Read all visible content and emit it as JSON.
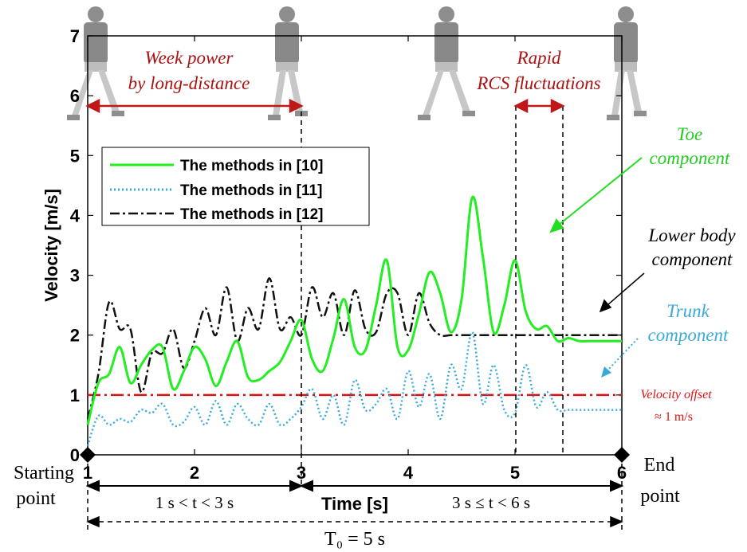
{
  "chart_data": {
    "type": "line",
    "title": "",
    "xlabel": "Time [s]",
    "ylabel": "Velocity [m/s]",
    "xlim": [
      1,
      6
    ],
    "ylim": [
      0,
      7
    ],
    "xticks": [
      1,
      2,
      3,
      4,
      5,
      6
    ],
    "yticks": [
      0,
      1,
      2,
      3,
      4,
      5,
      6,
      7
    ],
    "grid": false,
    "legend_position": "upper-left",
    "series": [
      {
        "name": "The methods in [10]",
        "color": "#22ee22",
        "style": "solid",
        "x": [
          1.0,
          1.1,
          1.2,
          1.3,
          1.4,
          1.5,
          1.6,
          1.7,
          1.8,
          1.9,
          2.0,
          2.1,
          2.2,
          2.3,
          2.4,
          2.5,
          2.6,
          2.7,
          2.8,
          2.9,
          3.0,
          3.1,
          3.2,
          3.3,
          3.4,
          3.5,
          3.6,
          3.7,
          3.8,
          3.9,
          4.0,
          4.1,
          4.2,
          4.3,
          4.4,
          4.5,
          4.6,
          4.7,
          4.8,
          4.9,
          5.0,
          5.1,
          5.2,
          5.3,
          5.4,
          5.5,
          5.6,
          5.7,
          5.8,
          5.9,
          6.0
        ],
        "y": [
          0.5,
          1.2,
          1.35,
          1.8,
          1.2,
          1.5,
          1.75,
          1.8,
          1.1,
          1.4,
          1.8,
          1.6,
          1.15,
          1.55,
          1.9,
          1.3,
          1.25,
          1.4,
          1.55,
          1.9,
          2.25,
          1.6,
          1.4,
          1.95,
          2.6,
          1.8,
          1.75,
          2.5,
          3.25,
          1.8,
          1.75,
          2.35,
          3.05,
          2.7,
          2.05,
          2.6,
          4.3,
          3.3,
          2.05,
          2.5,
          3.25,
          2.4,
          2.1,
          2.15,
          1.9,
          1.95,
          1.9,
          1.9,
          1.9,
          1.9,
          1.9
        ]
      },
      {
        "name": "The methods in [11]",
        "color": "#3aaad8",
        "style": "dotted",
        "x": [
          1.0,
          1.1,
          1.2,
          1.3,
          1.4,
          1.5,
          1.6,
          1.7,
          1.8,
          1.9,
          2.0,
          2.1,
          2.2,
          2.3,
          2.4,
          2.5,
          2.6,
          2.7,
          2.8,
          2.9,
          3.0,
          3.1,
          3.2,
          3.3,
          3.4,
          3.5,
          3.6,
          3.7,
          3.8,
          3.9,
          4.0,
          4.1,
          4.2,
          4.3,
          4.4,
          4.5,
          4.6,
          4.7,
          4.8,
          4.9,
          5.0,
          5.1,
          5.2,
          5.3,
          5.4,
          5.5,
          5.6,
          5.7,
          5.8,
          5.9,
          6.0
        ],
        "y": [
          0.15,
          0.65,
          0.5,
          0.6,
          0.55,
          0.75,
          0.7,
          0.85,
          0.5,
          0.55,
          0.8,
          0.5,
          0.9,
          0.5,
          0.85,
          0.6,
          0.5,
          0.85,
          0.5,
          0.6,
          0.8,
          1.1,
          0.6,
          1.0,
          0.5,
          1.25,
          0.75,
          0.85,
          1.1,
          0.6,
          1.4,
          0.8,
          1.35,
          0.6,
          1.5,
          1.1,
          2.05,
          0.85,
          1.5,
          0.75,
          0.7,
          1.5,
          0.8,
          1.05,
          0.75,
          0.75,
          0.75,
          0.75,
          0.75,
          0.75,
          0.75
        ]
      },
      {
        "name": "The methods in [12]",
        "color": "#111111",
        "style": "dashdot",
        "x": [
          1.0,
          1.1,
          1.2,
          1.3,
          1.4,
          1.5,
          1.6,
          1.7,
          1.8,
          1.9,
          2.0,
          2.1,
          2.2,
          2.3,
          2.4,
          2.5,
          2.6,
          2.7,
          2.8,
          2.9,
          3.0,
          3.1,
          3.2,
          3.3,
          3.4,
          3.5,
          3.6,
          3.7,
          3.8,
          3.9,
          4.0,
          4.1,
          4.2,
          4.3,
          4.4,
          4.5,
          4.6,
          4.7,
          4.8,
          4.9,
          5.0,
          5.1,
          5.2,
          5.3,
          5.4,
          5.5,
          5.6,
          5.7,
          5.8,
          5.9,
          6.0
        ],
        "y": [
          0.6,
          1.35,
          2.55,
          2.1,
          2.1,
          1.05,
          1.7,
          1.7,
          2.1,
          1.45,
          1.9,
          2.45,
          2.0,
          2.8,
          1.9,
          2.45,
          2.1,
          2.95,
          2.1,
          2.3,
          2.0,
          2.8,
          2.3,
          2.7,
          2.0,
          2.75,
          2.1,
          2.05,
          2.7,
          2.7,
          2.0,
          2.7,
          2.2,
          2.0,
          2.0,
          2.0,
          2.0,
          2.0,
          2.0,
          2.0,
          2.0,
          2.0,
          2.0,
          2.0,
          2.0,
          2.0,
          2.0,
          2.0,
          2.0,
          2.0,
          2.0
        ]
      }
    ],
    "reference_lines": [
      {
        "label": "Velocity offset",
        "value_label": "≈ 1 m/s",
        "y": 1,
        "color": "#dd1111",
        "style": "dashdot"
      }
    ],
    "annotations": {
      "week_power": [
        "Week power",
        "by long-distance"
      ],
      "rapid_rcs": [
        "Rapid",
        "RCS fluctuations"
      ],
      "toe": [
        "Toe",
        "component"
      ],
      "lower_body": [
        "Lower body",
        "component"
      ],
      "trunk": [
        "Trunk",
        "component"
      ],
      "start_point": [
        "Starting",
        "point"
      ],
      "end_point": [
        "End",
        "point"
      ],
      "interval_1": "1 s < t < 3 s",
      "interval_2": "3 s ≤ t < 6 s",
      "total_period": "T₀ = 5 s"
    },
    "colors": {
      "red_annotation": "#aa1111",
      "green_annotation": "#22cc22",
      "cyan_annotation": "#3aaad8"
    }
  }
}
